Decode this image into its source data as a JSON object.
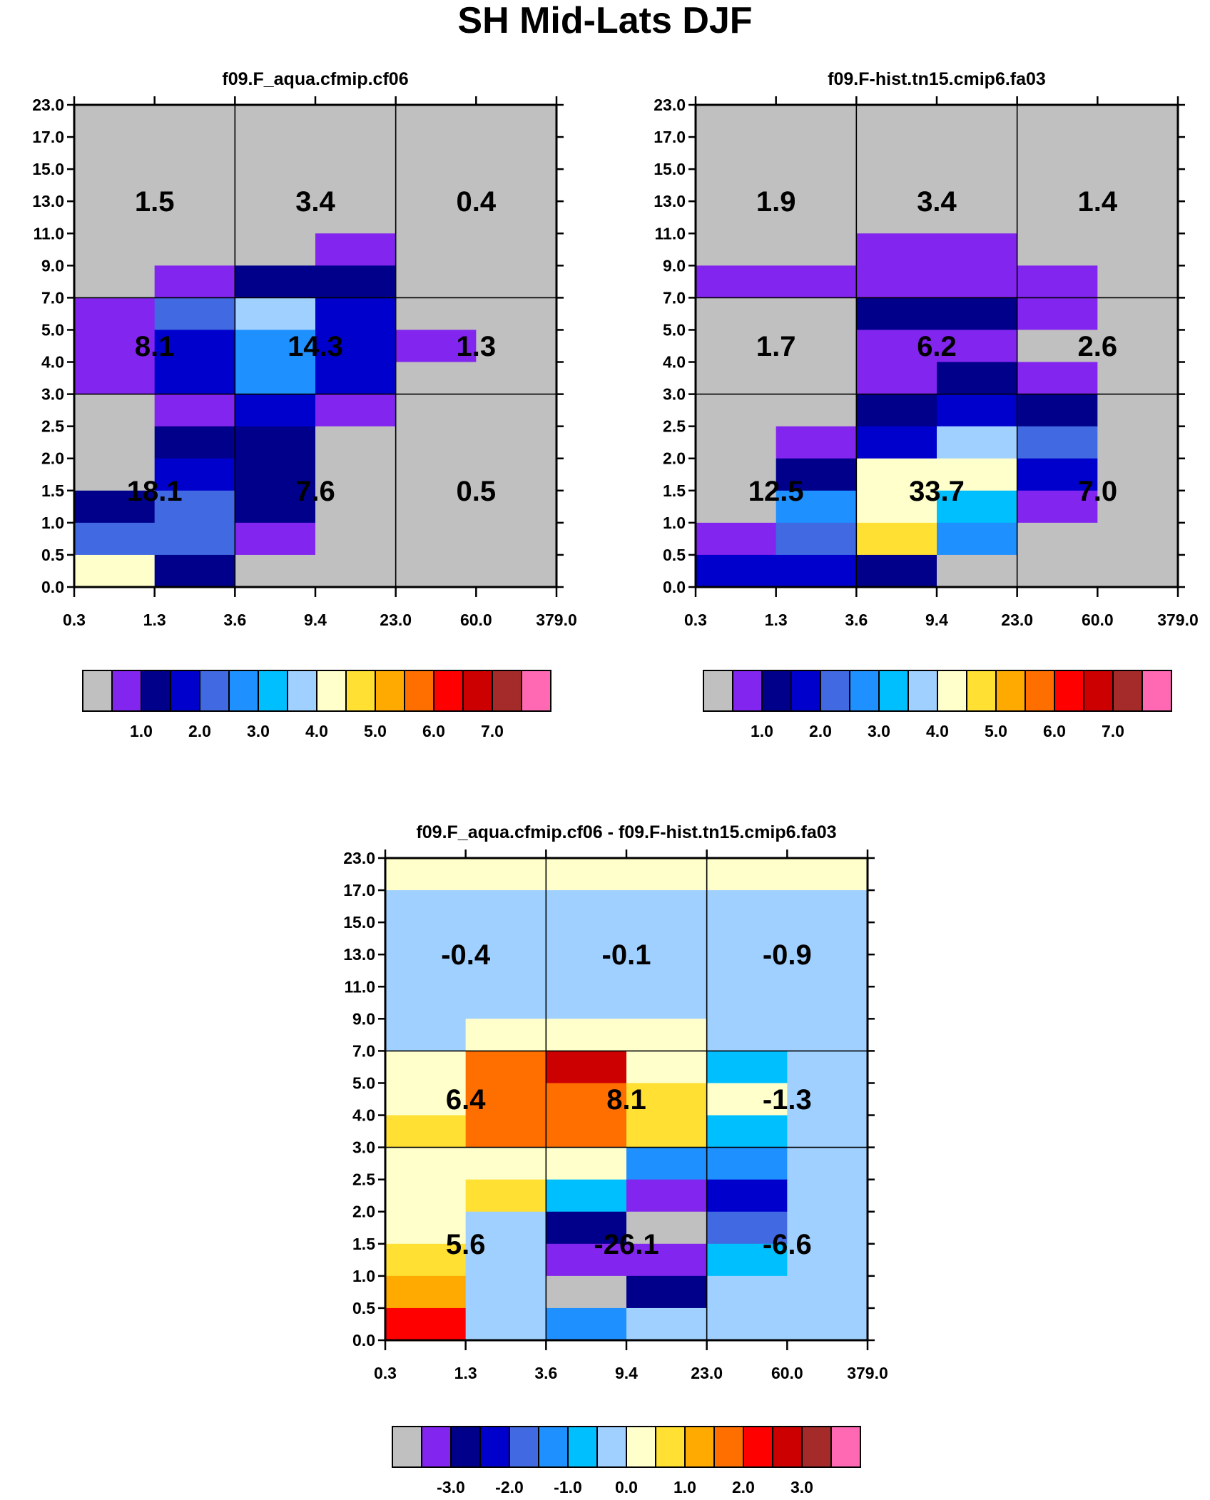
{
  "figure": {
    "title": "SH Mid-Lats DJF"
  },
  "palette": [
    "#c0c0c0",
    "#8225ee",
    "#00008b",
    "#0000cd",
    "#4169e1",
    "#1e90ff",
    "#00bfff",
    "#a0d0ff",
    "#ffffcc",
    "#ffe033",
    "#ffaa00",
    "#ff6f00",
    "#ff0000",
    "#cc0000",
    "#a52a2a",
    "#ff69b4"
  ],
  "chart_data": [
    {
      "type": "heatmap",
      "title": "f09.F_aqua.cfmip.cf06",
      "x_ticks": [
        "0.3",
        "1.3",
        "3.6",
        "9.4",
        "23.0",
        "60.0",
        "379.0"
      ],
      "y_ticks": [
        "0.0",
        "0.5",
        "1.0",
        "1.5",
        "2.0",
        "2.5",
        "3.0",
        "4.0",
        "5.0",
        "7.0",
        "9.0",
        "11.0",
        "13.0",
        "15.0",
        "17.0",
        "23.0"
      ],
      "cells_note": "rows listed top (23.0-17.0) to bottom (0.5-0.0); 6 columns; value = palette index",
      "cells": [
        [
          0,
          0,
          0,
          0,
          0,
          0
        ],
        [
          0,
          0,
          0,
          0,
          0,
          0
        ],
        [
          0,
          0,
          0,
          0,
          0,
          0
        ],
        [
          0,
          0,
          0,
          0,
          0,
          0
        ],
        [
          0,
          0,
          0,
          1,
          0,
          0
        ],
        [
          0,
          1,
          2,
          2,
          0,
          0
        ],
        [
          1,
          4,
          7,
          3,
          0,
          0
        ],
        [
          1,
          3,
          5,
          3,
          1,
          0
        ],
        [
          1,
          3,
          5,
          3,
          0,
          0
        ],
        [
          0,
          1,
          3,
          1,
          0,
          0
        ],
        [
          0,
          2,
          2,
          0,
          0,
          0
        ],
        [
          0,
          3,
          2,
          0,
          0,
          0
        ],
        [
          2,
          4,
          2,
          0,
          0,
          0
        ],
        [
          4,
          4,
          1,
          0,
          0,
          0
        ],
        [
          8,
          2,
          0,
          0,
          0,
          0
        ]
      ],
      "summary_labels": [
        {
          "col": 0,
          "row": 0,
          "value": "1.5"
        },
        {
          "col": 1,
          "row": 0,
          "value": "3.4"
        },
        {
          "col": 2,
          "row": 0,
          "value": "0.4"
        },
        {
          "col": 0,
          "row": 1,
          "value": "8.1"
        },
        {
          "col": 1,
          "row": 1,
          "value": "14.3"
        },
        {
          "col": 2,
          "row": 1,
          "value": "1.3"
        },
        {
          "col": 0,
          "row": 2,
          "value": "18.1"
        },
        {
          "col": 1,
          "row": 2,
          "value": "7.6"
        },
        {
          "col": 2,
          "row": 2,
          "value": "0.5"
        }
      ],
      "colorbar_labels": [
        "1.0",
        "2.0",
        "3.0",
        "4.0",
        "5.0",
        "6.0",
        "7.0"
      ]
    },
    {
      "type": "heatmap",
      "title": "f09.F-hist.tn15.cmip6.fa03",
      "x_ticks": [
        "0.3",
        "1.3",
        "3.6",
        "9.4",
        "23.0",
        "60.0",
        "379.0"
      ],
      "y_ticks": [
        "0.0",
        "0.5",
        "1.0",
        "1.5",
        "2.0",
        "2.5",
        "3.0",
        "4.0",
        "5.0",
        "7.0",
        "9.0",
        "11.0",
        "13.0",
        "15.0",
        "17.0",
        "23.0"
      ],
      "cells_note": "rows listed top (23.0-17.0) to bottom (0.5-0.0); 6 columns; value = palette index",
      "cells": [
        [
          0,
          0,
          0,
          0,
          0,
          0
        ],
        [
          0,
          0,
          0,
          0,
          0,
          0
        ],
        [
          0,
          0,
          0,
          0,
          0,
          0
        ],
        [
          0,
          0,
          0,
          0,
          0,
          0
        ],
        [
          0,
          0,
          1,
          1,
          0,
          0
        ],
        [
          1,
          1,
          1,
          1,
          1,
          0
        ],
        [
          0,
          0,
          2,
          2,
          1,
          0
        ],
        [
          0,
          0,
          1,
          1,
          0,
          0
        ],
        [
          0,
          0,
          1,
          2,
          1,
          0
        ],
        [
          0,
          0,
          2,
          3,
          2,
          0
        ],
        [
          0,
          1,
          3,
          7,
          4,
          0
        ],
        [
          0,
          2,
          8,
          8,
          3,
          0
        ],
        [
          0,
          5,
          8,
          6,
          1,
          0
        ],
        [
          1,
          4,
          9,
          5,
          0,
          0
        ],
        [
          3,
          3,
          2,
          0,
          0,
          0
        ]
      ],
      "summary_labels": [
        {
          "col": 0,
          "row": 0,
          "value": "1.9"
        },
        {
          "col": 1,
          "row": 0,
          "value": "3.4"
        },
        {
          "col": 2,
          "row": 0,
          "value": "1.4"
        },
        {
          "col": 0,
          "row": 1,
          "value": "1.7"
        },
        {
          "col": 1,
          "row": 1,
          "value": "6.2"
        },
        {
          "col": 2,
          "row": 1,
          "value": "2.6"
        },
        {
          "col": 0,
          "row": 2,
          "value": "12.5"
        },
        {
          "col": 1,
          "row": 2,
          "value": "33.7"
        },
        {
          "col": 2,
          "row": 2,
          "value": "7.0"
        }
      ],
      "colorbar_labels": [
        "1.0",
        "2.0",
        "3.0",
        "4.0",
        "5.0",
        "6.0",
        "7.0"
      ]
    },
    {
      "type": "heatmap",
      "title": "f09.F_aqua.cfmip.cf06 - f09.F-hist.tn15.cmip6.fa03",
      "x_ticks": [
        "0.3",
        "1.3",
        "3.6",
        "9.4",
        "23.0",
        "60.0",
        "379.0"
      ],
      "y_ticks": [
        "0.0",
        "0.5",
        "1.0",
        "1.5",
        "2.0",
        "2.5",
        "3.0",
        "4.0",
        "5.0",
        "7.0",
        "9.0",
        "11.0",
        "13.0",
        "15.0",
        "17.0",
        "23.0"
      ],
      "cells_note": "rows listed top (23.0-17.0) to bottom (0.5-0.0); 6 columns; value = palette index",
      "cells": [
        [
          8,
          8,
          8,
          8,
          8,
          8
        ],
        [
          7,
          7,
          7,
          7,
          7,
          7
        ],
        [
          7,
          7,
          7,
          7,
          7,
          7
        ],
        [
          7,
          7,
          7,
          7,
          7,
          7
        ],
        [
          7,
          7,
          7,
          7,
          7,
          7
        ],
        [
          7,
          8,
          8,
          8,
          7,
          7
        ],
        [
          8,
          11,
          13,
          8,
          6,
          7
        ],
        [
          8,
          11,
          11,
          9,
          8,
          7
        ],
        [
          9,
          11,
          11,
          9,
          6,
          7
        ],
        [
          8,
          8,
          8,
          5,
          5,
          7
        ],
        [
          8,
          9,
          6,
          1,
          3,
          7
        ],
        [
          8,
          7,
          2,
          0,
          4,
          7
        ],
        [
          9,
          7,
          1,
          1,
          6,
          7
        ],
        [
          10,
          7,
          0,
          2,
          7,
          7
        ],
        [
          12,
          7,
          5,
          7,
          7,
          7
        ]
      ],
      "summary_labels": [
        {
          "col": 0,
          "row": 0,
          "value": "-0.4"
        },
        {
          "col": 1,
          "row": 0,
          "value": "-0.1"
        },
        {
          "col": 2,
          "row": 0,
          "value": "-0.9"
        },
        {
          "col": 0,
          "row": 1,
          "value": "6.4"
        },
        {
          "col": 1,
          "row": 1,
          "value": "8.1"
        },
        {
          "col": 2,
          "row": 1,
          "value": "-1.3"
        },
        {
          "col": 0,
          "row": 2,
          "value": "5.6"
        },
        {
          "col": 1,
          "row": 2,
          "value": "-26.1"
        },
        {
          "col": 2,
          "row": 2,
          "value": "-6.6"
        }
      ],
      "colorbar_labels": [
        "-3.0",
        "-2.0",
        "-1.0",
        "0.0",
        "1.0",
        "2.0",
        "3.0"
      ]
    }
  ]
}
